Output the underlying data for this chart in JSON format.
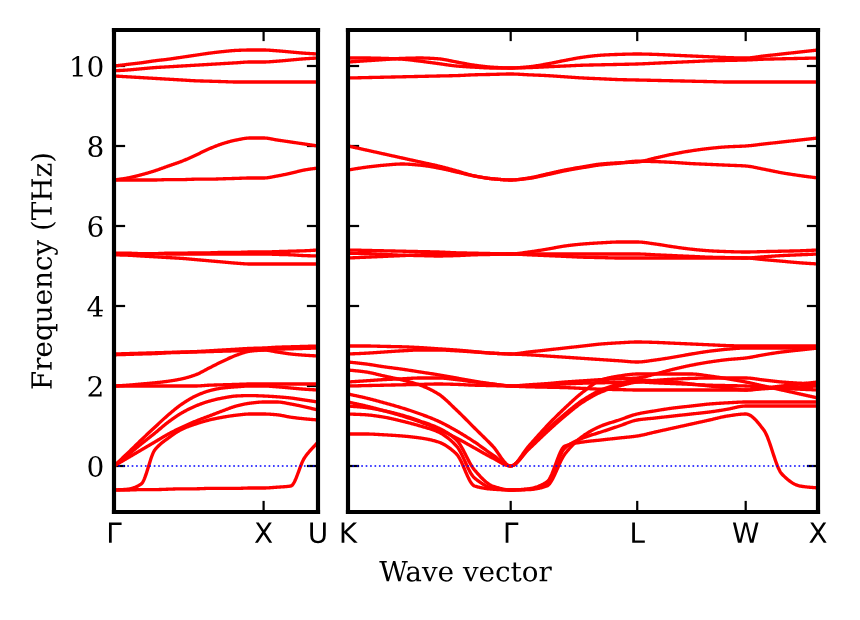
{
  "chart_data": [
    {
      "type": "line",
      "ylabel": "Frequency (THz)",
      "ylim": [
        -1.15,
        10.9
      ],
      "categories": [
        "Γ",
        null,
        null,
        null,
        null,
        null,
        null,
        null,
        null,
        null,
        null,
        "X",
        null,
        null,
        null,
        "U"
      ],
      "yticks": [
        0,
        2,
        4,
        6,
        8,
        10
      ],
      "ref_lines": [
        {
          "axis": "y",
          "value": 0,
          "color": "#0000ff",
          "line_style": "dotted"
        }
      ],
      "series": [
        {
          "color": "#ff0000",
          "values": [
            -0.6,
            -0.6,
            -0.59,
            -0.59,
            -0.58,
            -0.57,
            -0.57,
            -0.56,
            -0.56,
            -0.56,
            -0.55,
            -0.55,
            -0.53,
            -0.5,
            0.2,
            0.6
          ]
        },
        {
          "color": "#ff0000",
          "values": [
            -0.6,
            -0.58,
            -0.45,
            0.4,
            0.7,
            0.92,
            1.05,
            1.15,
            1.22,
            1.27,
            1.3,
            1.3,
            1.28,
            1.22,
            1.18,
            1.15
          ]
        },
        {
          "color": "#ff0000",
          "values": [
            0,
            0.2,
            0.4,
            0.6,
            0.8,
            0.97,
            1.12,
            1.25,
            1.38,
            1.5,
            1.57,
            1.6,
            1.6,
            1.55,
            1.48,
            1.4
          ]
        },
        {
          "color": "#ff0000",
          "values": [
            0,
            0.27,
            0.55,
            0.82,
            1.1,
            1.33,
            1.5,
            1.62,
            1.7,
            1.75,
            1.76,
            1.75,
            1.73,
            1.7,
            1.65,
            1.6
          ]
        },
        {
          "color": "#ff0000",
          "values": [
            0,
            0.32,
            0.65,
            0.97,
            1.28,
            1.55,
            1.75,
            1.88,
            1.95,
            1.98,
            2.0,
            2.0,
            1.98,
            1.95,
            1.92,
            1.9
          ]
        },
        {
          "color": "#ff0000",
          "values": [
            2.0,
            2.0,
            2.0,
            2.0,
            2.0,
            2.0,
            2.0,
            2.02,
            2.03,
            2.04,
            2.05,
            2.05,
            2.05,
            2.05,
            2.05,
            2.05
          ]
        },
        {
          "color": "#ff0000",
          "values": [
            2.0,
            2.02,
            2.05,
            2.08,
            2.12,
            2.18,
            2.28,
            2.45,
            2.62,
            2.77,
            2.87,
            2.9,
            2.92,
            2.93,
            2.94,
            2.95
          ]
        },
        {
          "color": "#ff0000",
          "values": [
            2.8,
            2.81,
            2.82,
            2.83,
            2.84,
            2.85,
            2.86,
            2.88,
            2.9,
            2.92,
            2.94,
            2.95,
            2.97,
            2.98,
            2.99,
            3.0
          ]
        },
        {
          "color": "#ff0000",
          "values": [
            2.78,
            2.79,
            2.8,
            2.81,
            2.83,
            2.84,
            2.85,
            2.86,
            2.87,
            2.88,
            2.89,
            2.9,
            2.85,
            2.8,
            2.77,
            2.75
          ]
        },
        {
          "color": "#ff0000",
          "values": [
            5.3,
            5.3,
            5.31,
            5.31,
            5.32,
            5.32,
            5.33,
            5.33,
            5.34,
            5.34,
            5.35,
            5.35,
            5.36,
            5.37,
            5.38,
            5.4
          ]
        },
        {
          "color": "#ff0000",
          "values": [
            5.32,
            5.32,
            5.31,
            5.31,
            5.3,
            5.3,
            5.3,
            5.3,
            5.3,
            5.3,
            5.3,
            5.3,
            5.29,
            5.28,
            5.26,
            5.25
          ]
        },
        {
          "color": "#ff0000",
          "values": [
            5.28,
            5.27,
            5.25,
            5.23,
            5.21,
            5.19,
            5.16,
            5.13,
            5.1,
            5.07,
            5.05,
            5.05,
            5.05,
            5.05,
            5.05,
            5.05
          ]
        },
        {
          "color": "#ff0000",
          "values": [
            7.15,
            7.2,
            7.28,
            7.38,
            7.5,
            7.62,
            7.77,
            7.93,
            8.06,
            8.15,
            8.2,
            8.2,
            8.15,
            8.1,
            8.05,
            8.0
          ]
        },
        {
          "color": "#ff0000",
          "values": [
            7.15,
            7.15,
            7.15,
            7.15,
            7.16,
            7.16,
            7.17,
            7.17,
            7.18,
            7.19,
            7.2,
            7.2,
            7.25,
            7.32,
            7.4,
            7.45
          ]
        },
        {
          "color": "#ff0000",
          "values": [
            10.0,
            10.04,
            10.08,
            10.13,
            10.17,
            10.22,
            10.27,
            10.32,
            10.36,
            10.39,
            10.4,
            10.4,
            10.38,
            10.35,
            10.32,
            10.3
          ]
        },
        {
          "color": "#ff0000",
          "values": [
            9.88,
            9.9,
            9.93,
            9.96,
            9.98,
            10.0,
            10.02,
            10.04,
            10.06,
            10.08,
            10.1,
            10.1,
            10.12,
            10.15,
            10.18,
            10.2
          ]
        },
        {
          "color": "#ff0000",
          "values": [
            9.75,
            9.73,
            9.71,
            9.69,
            9.67,
            9.65,
            9.63,
            9.62,
            9.61,
            9.6,
            9.6,
            9.6,
            9.6,
            9.6,
            9.6,
            9.6
          ]
        }
      ]
    },
    {
      "type": "line",
      "xlabel": "Wave vector",
      "ylim": [
        -1.15,
        10.9
      ],
      "tick_labels": "x",
      "categories": [
        "K",
        null,
        null,
        null,
        null,
        null,
        null,
        null,
        null,
        "Γ",
        null,
        null,
        null,
        null,
        null,
        null,
        "L",
        null,
        null,
        null,
        null,
        null,
        "W",
        null,
        null,
        null,
        "X"
      ],
      "yticks": [
        0,
        2,
        4,
        6,
        8,
        10
      ],
      "ref_lines": [
        {
          "axis": "y",
          "value": 0,
          "color": "#0000ff",
          "line_style": "dotted"
        }
      ],
      "series": [
        {
          "color": "#ff0000",
          "values": [
            0.8,
            0.8,
            0.78,
            0.75,
            0.7,
            0.6,
            0.3,
            -0.5,
            -0.58,
            -0.6,
            -0.57,
            -0.4,
            0.5,
            0.6,
            0.65,
            0.7,
            0.75,
            0.85,
            0.95,
            1.05,
            1.15,
            1.25,
            1.3,
            0.9,
            -0.2,
            -0.5,
            -0.55
          ]
        },
        {
          "color": "#ff0000",
          "values": [
            1.3,
            1.28,
            1.22,
            1.12,
            1.0,
            0.85,
            0.5,
            -0.3,
            -0.55,
            -0.6,
            -0.58,
            -0.45,
            0.45,
            0.7,
            0.85,
            1.0,
            1.15,
            1.2,
            1.25,
            1.3,
            1.35,
            1.42,
            1.5,
            1.5,
            1.5,
            1.5,
            1.5
          ]
        },
        {
          "color": "#ff0000",
          "values": [
            1.5,
            1.46,
            1.38,
            1.27,
            1.12,
            0.95,
            0.65,
            -0.1,
            -0.5,
            -0.6,
            -0.59,
            -0.5,
            0.3,
            0.75,
            1.0,
            1.15,
            1.3,
            1.38,
            1.45,
            1.5,
            1.55,
            1.58,
            1.6,
            1.6,
            1.6,
            1.6,
            1.6
          ]
        },
        {
          "color": "#ff0000",
          "values": [
            1.6,
            1.5,
            1.38,
            1.25,
            1.1,
            0.92,
            0.7,
            0.45,
            0.2,
            0,
            0.45,
            0.9,
            1.3,
            1.65,
            1.9,
            2.05,
            2.15,
            2.13,
            2.1,
            2.05,
            2.0,
            1.95,
            1.9,
            1.93,
            1.96,
            1.98,
            2.0
          ]
        },
        {
          "color": "#ff0000",
          "values": [
            1.8,
            1.7,
            1.58,
            1.45,
            1.3,
            1.12,
            0.88,
            0.6,
            0.28,
            0,
            0.42,
            0.85,
            1.25,
            1.6,
            1.85,
            2.0,
            2.1,
            2.14,
            2.17,
            2.19,
            2.2,
            2.2,
            2.2,
            2.15,
            2.1,
            2.07,
            2.05
          ]
        },
        {
          "color": "#ff0000",
          "values": [
            2.4,
            2.35,
            2.25,
            2.15,
            2.02,
            1.8,
            1.4,
            0.95,
            0.5,
            0,
            0.5,
            1.0,
            1.45,
            1.85,
            2.15,
            2.25,
            2.3,
            2.3,
            2.3,
            2.3,
            2.25,
            2.18,
            2.1,
            2.0,
            1.9,
            1.8,
            1.7
          ]
        },
        {
          "color": "#ff0000",
          "values": [
            2.0,
            2.01,
            2.02,
            2.03,
            2.04,
            2.05,
            2.04,
            2.02,
            2.01,
            2.0,
            2.01,
            2.03,
            2.05,
            2.07,
            2.08,
            2.09,
            2.1,
            2.08,
            2.06,
            2.04,
            2.02,
            2.01,
            2.0,
            1.97,
            1.94,
            1.92,
            1.9
          ]
        },
        {
          "color": "#ff0000",
          "values": [
            2.1,
            2.13,
            2.16,
            2.18,
            2.2,
            2.2,
            2.16,
            2.1,
            2.05,
            2.0,
            2.03,
            2.06,
            2.1,
            2.13,
            2.16,
            2.18,
            2.2,
            2.3,
            2.42,
            2.52,
            2.6,
            2.66,
            2.7,
            2.78,
            2.85,
            2.9,
            2.95
          ]
        },
        {
          "color": "#ff0000",
          "values": [
            2.6,
            2.55,
            2.48,
            2.42,
            2.35,
            2.28,
            2.2,
            2.12,
            2.05,
            2.0,
            1.98,
            1.97,
            1.96,
            1.94,
            1.92,
            1.91,
            1.9,
            1.9,
            1.9,
            1.9,
            1.9,
            1.9,
            1.9,
            1.95,
            2.0,
            2.05,
            2.1
          ]
        },
        {
          "color": "#ff0000",
          "values": [
            2.8,
            2.82,
            2.85,
            2.88,
            2.9,
            2.9,
            2.88,
            2.85,
            2.82,
            2.8,
            2.85,
            2.9,
            2.95,
            3.0,
            3.05,
            3.08,
            3.1,
            3.09,
            3.07,
            3.05,
            3.03,
            3.01,
            3.0,
            3.0,
            3.0,
            3.0,
            3.0
          ]
        },
        {
          "color": "#ff0000",
          "values": [
            3.0,
            3.0,
            2.99,
            2.98,
            2.96,
            2.93,
            2.9,
            2.86,
            2.82,
            2.8,
            2.78,
            2.75,
            2.72,
            2.69,
            2.66,
            2.63,
            2.6,
            2.65,
            2.72,
            2.8,
            2.87,
            2.92,
            2.95,
            2.95,
            2.95,
            2.95,
            2.95
          ]
        },
        {
          "color": "#ff0000",
          "values": [
            5.4,
            5.39,
            5.38,
            5.37,
            5.36,
            5.35,
            5.33,
            5.32,
            5.31,
            5.3,
            5.35,
            5.42,
            5.5,
            5.55,
            5.58,
            5.6,
            5.6,
            5.55,
            5.48,
            5.42,
            5.38,
            5.36,
            5.35,
            5.36,
            5.37,
            5.38,
            5.4
          ]
        },
        {
          "color": "#ff0000",
          "values": [
            5.2,
            5.22,
            5.24,
            5.26,
            5.28,
            5.3,
            5.3,
            5.3,
            5.3,
            5.3,
            5.3,
            5.3,
            5.3,
            5.3,
            5.3,
            5.3,
            5.3,
            5.28,
            5.26,
            5.24,
            5.22,
            5.21,
            5.2,
            5.23,
            5.26,
            5.28,
            5.3
          ]
        },
        {
          "color": "#ff0000",
          "values": [
            5.32,
            5.31,
            5.29,
            5.27,
            5.26,
            5.25,
            5.26,
            5.28,
            5.29,
            5.3,
            5.28,
            5.26,
            5.24,
            5.22,
            5.21,
            5.2,
            5.2,
            5.2,
            5.2,
            5.2,
            5.2,
            5.2,
            5.2,
            5.16,
            5.12,
            5.08,
            5.05
          ]
        },
        {
          "color": "#ff0000",
          "values": [
            8.0,
            7.9,
            7.8,
            7.7,
            7.6,
            7.5,
            7.38,
            7.25,
            7.18,
            7.15,
            7.2,
            7.3,
            7.4,
            7.48,
            7.55,
            7.58,
            7.6,
            7.7,
            7.8,
            7.88,
            7.94,
            7.98,
            8.0,
            8.05,
            8.1,
            8.15,
            8.2
          ]
        },
        {
          "color": "#ff0000",
          "values": [
            7.4,
            7.47,
            7.52,
            7.55,
            7.52,
            7.45,
            7.35,
            7.25,
            7.18,
            7.15,
            7.19,
            7.28,
            7.38,
            7.46,
            7.53,
            7.57,
            7.62,
            7.61,
            7.59,
            7.56,
            7.54,
            7.52,
            7.5,
            7.42,
            7.33,
            7.26,
            7.2
          ]
        },
        {
          "color": "#ff0000",
          "values": [
            10.2,
            10.2,
            10.19,
            10.17,
            10.12,
            10.06,
            10.0,
            9.97,
            9.95,
            9.95,
            9.98,
            10.05,
            10.14,
            10.22,
            10.27,
            10.29,
            10.3,
            10.29,
            10.27,
            10.25,
            10.23,
            10.21,
            10.2,
            10.25,
            10.3,
            10.35,
            10.4
          ]
        },
        {
          "color": "#ff0000",
          "values": [
            10.1,
            10.13,
            10.16,
            10.19,
            10.2,
            10.18,
            10.1,
            10.02,
            9.97,
            9.95,
            9.96,
            9.98,
            10.0,
            10.02,
            10.03,
            10.04,
            10.05,
            10.07,
            10.09,
            10.11,
            10.13,
            10.14,
            10.15,
            10.17,
            10.18,
            10.19,
            10.2
          ]
        },
        {
          "color": "#ff0000",
          "values": [
            9.7,
            9.71,
            9.72,
            9.73,
            9.74,
            9.75,
            9.76,
            9.78,
            9.79,
            9.8,
            9.78,
            9.76,
            9.73,
            9.7,
            9.68,
            9.66,
            9.65,
            9.64,
            9.63,
            9.62,
            9.61,
            9.6,
            9.6,
            9.6,
            9.6,
            9.6,
            9.6
          ]
        }
      ]
    }
  ]
}
